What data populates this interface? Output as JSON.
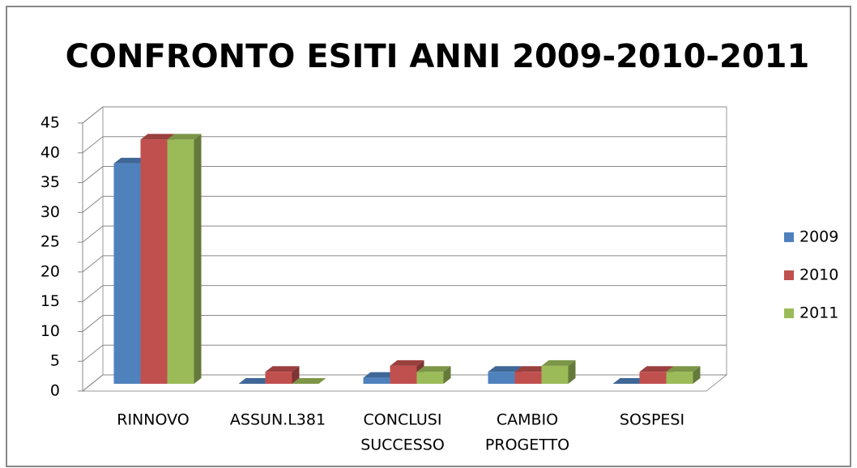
{
  "chart_data": {
    "type": "bar3d",
    "title": "CONFRONTO ESITI ANNI 2009-2010-2011",
    "categories": [
      [
        "RINNOVO"
      ],
      [
        "ASSUN.L381"
      ],
      [
        "CONCLUSI",
        "SUCCESSO"
      ],
      [
        "CAMBIO",
        "PROGETTO"
      ],
      [
        "SOSPESI"
      ]
    ],
    "series": [
      {
        "name": "2009",
        "color": "#4f81bd",
        "values": [
          37,
          0,
          1,
          2,
          0
        ]
      },
      {
        "name": "2010",
        "color": "#c0504d",
        "values": [
          41,
          2,
          3,
          2,
          2
        ]
      },
      {
        "name": "2011",
        "color": "#9bbb59",
        "values": [
          41,
          0,
          2,
          3,
          2
        ]
      }
    ],
    "ylim": [
      0,
      45
    ],
    "yticks": [
      0,
      5,
      10,
      15,
      20,
      25,
      30,
      35,
      40,
      45
    ],
    "grid": true,
    "legend": "right"
  }
}
